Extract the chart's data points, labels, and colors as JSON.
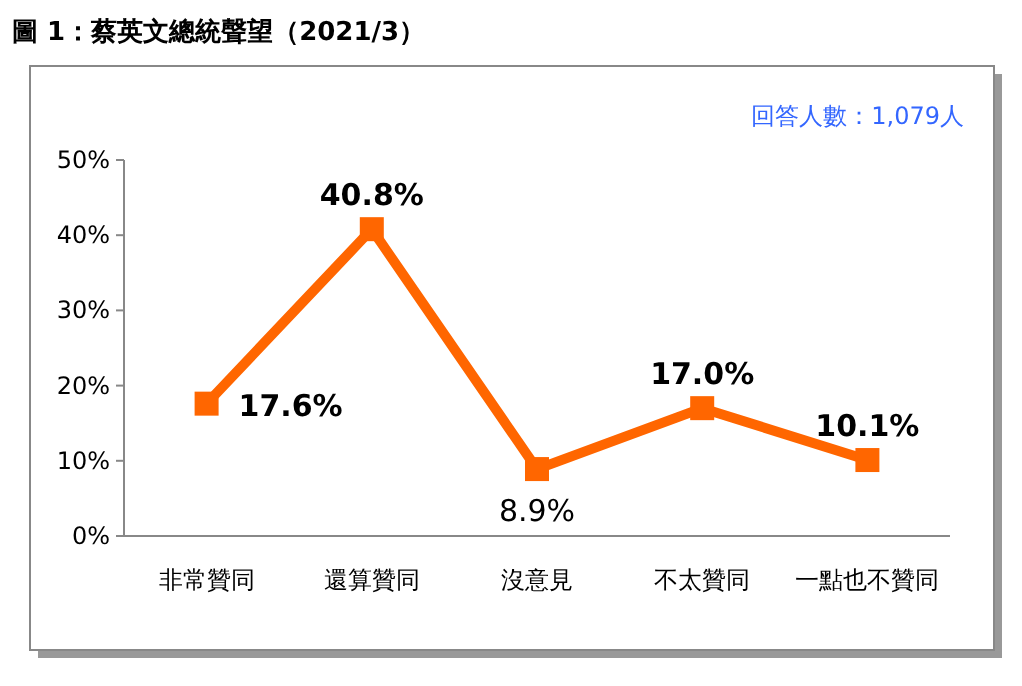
{
  "chart_data": {
    "type": "line",
    "title": "圖 1：蔡英文總統聲望（2021/3）",
    "annotations": [
      "回答人數：1,079人"
    ],
    "categories": [
      "非常贊同",
      "還算贊同",
      "沒意見",
      "不太贊同",
      "一點也不贊同"
    ],
    "series": [
      {
        "color": "#ff6600",
        "values": [
          17.6,
          40.8,
          8.9,
          17.0,
          10.1
        ],
        "value_labels": [
          "17.6%",
          "40.8%",
          "8.9%",
          "17.0%",
          "10.1%"
        ]
      }
    ],
    "ylim": [
      0,
      50
    ],
    "yticks": [
      {
        "value": 0,
        "label": "0%"
      },
      {
        "value": 10,
        "label": "10%"
      },
      {
        "value": 20,
        "label": "20%"
      },
      {
        "value": 30,
        "label": "30%"
      },
      {
        "value": 40,
        "label": "40%"
      },
      {
        "value": 50,
        "label": "50%"
      }
    ],
    "grid": false,
    "marker": "square",
    "line_style": "solid"
  }
}
